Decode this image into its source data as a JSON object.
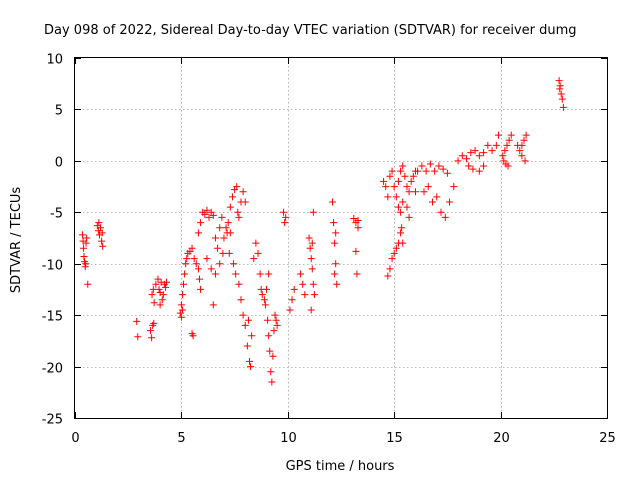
{
  "chart_data": {
    "type": "scatter",
    "title": "Day 098 of 2022, Sidereal Day-to-day VTEC variation (SDTVAR) for receiver dumg",
    "xlabel": "GPS time / hours",
    "ylabel": "SDTVAR / TECUs",
    "xlim": [
      0,
      25
    ],
    "ylim": [
      -25,
      10
    ],
    "xticks": [
      0,
      5,
      10,
      15,
      20,
      25
    ],
    "yticks": [
      -25,
      -20,
      -15,
      -10,
      -5,
      0,
      5,
      10
    ],
    "grid": true,
    "marker": "+",
    "series": [
      {
        "name": "SDTVAR",
        "color": "#ff0000",
        "points": [
          [
            0.35,
            -7.2
          ],
          [
            0.38,
            -7.8
          ],
          [
            0.4,
            -8.5
          ],
          [
            0.42,
            -9.3
          ],
          [
            0.45,
            -9.8
          ],
          [
            0.48,
            -10.3
          ],
          [
            0.5,
            -10.0
          ],
          [
            0.52,
            -8.0
          ],
          [
            0.55,
            -7.5
          ],
          [
            0.6,
            -12.0
          ],
          [
            1.05,
            -6.3
          ],
          [
            1.1,
            -6.8
          ],
          [
            1.15,
            -7.2
          ],
          [
            1.2,
            -6.5
          ],
          [
            1.25,
            -7.8
          ],
          [
            1.3,
            -8.3
          ],
          [
            1.12,
            -6.0
          ],
          [
            1.28,
            -7.0
          ],
          [
            2.9,
            -15.6
          ],
          [
            2.95,
            -17.1
          ],
          [
            3.55,
            -16.5
          ],
          [
            3.6,
            -17.2
          ],
          [
            3.65,
            -16.0
          ],
          [
            3.7,
            -15.8
          ],
          [
            3.62,
            -13.0
          ],
          [
            3.68,
            -12.5
          ],
          [
            3.72,
            -13.8
          ],
          [
            3.8,
            -12.0
          ],
          [
            3.9,
            -11.5
          ],
          [
            4.0,
            -12.8
          ],
          [
            4.1,
            -13.5
          ],
          [
            4.2,
            -12.0
          ],
          [
            4.3,
            -11.8
          ],
          [
            4.0,
            -14.0
          ],
          [
            4.15,
            -13.0
          ],
          [
            4.25,
            -12.3
          ],
          [
            3.95,
            -12.5
          ],
          [
            4.05,
            -11.8
          ],
          [
            4.95,
            -14.8
          ],
          [
            5.0,
            -14.0
          ],
          [
            5.05,
            -13.0
          ],
          [
            5.1,
            -12.0
          ],
          [
            5.15,
            -11.0
          ],
          [
            5.2,
            -10.0
          ],
          [
            5.25,
            -9.5
          ],
          [
            5.3,
            -9.0
          ],
          [
            5.4,
            -8.8
          ],
          [
            5.5,
            -8.5
          ],
          [
            5.6,
            -9.5
          ],
          [
            5.7,
            -10.0
          ],
          [
            5.8,
            -10.5
          ],
          [
            5.85,
            -11.5
          ],
          [
            5.9,
            -12.5
          ],
          [
            5.0,
            -15.2
          ],
          [
            5.05,
            -14.5
          ],
          [
            5.5,
            -16.8
          ],
          [
            5.55,
            -17.0
          ],
          [
            5.8,
            -7.0
          ],
          [
            5.9,
            -6.0
          ],
          [
            6.0,
            -5.0
          ],
          [
            6.1,
            -5.2
          ],
          [
            6.2,
            -4.8
          ],
          [
            6.3,
            -5.5
          ],
          [
            6.4,
            -5.0
          ],
          [
            6.5,
            -5.3
          ],
          [
            6.6,
            -7.5
          ],
          [
            6.7,
            -8.5
          ],
          [
            6.8,
            -6.5
          ],
          [
            6.9,
            -5.5
          ],
          [
            6.2,
            -9.5
          ],
          [
            6.4,
            -10.5
          ],
          [
            6.6,
            -11.0
          ],
          [
            6.8,
            -10.0
          ],
          [
            6.5,
            -14.0
          ],
          [
            7.0,
            -7.5
          ],
          [
            7.1,
            -6.5
          ],
          [
            7.2,
            -6.0
          ],
          [
            7.3,
            -4.5
          ],
          [
            7.4,
            -3.5
          ],
          [
            7.5,
            -2.8
          ],
          [
            7.6,
            -2.5
          ],
          [
            7.65,
            -5.0
          ],
          [
            7.7,
            -5.5
          ],
          [
            7.8,
            -4.0
          ],
          [
            7.9,
            -3.0
          ],
          [
            8.0,
            -4.0
          ],
          [
            7.25,
            -9.0
          ],
          [
            7.45,
            -10.0
          ],
          [
            7.55,
            -11.0
          ],
          [
            7.15,
            -7.0
          ],
          [
            6.95,
            -9.0
          ],
          [
            7.3,
            -7.0
          ],
          [
            7.7,
            -12.0
          ],
          [
            7.8,
            -13.5
          ],
          [
            7.9,
            -15.0
          ],
          [
            8.0,
            -16.0
          ],
          [
            8.1,
            -18.0
          ],
          [
            8.2,
            -19.5
          ],
          [
            8.3,
            -17.0
          ],
          [
            8.25,
            -20.0
          ],
          [
            8.15,
            -15.5
          ],
          [
            8.4,
            -9.5
          ],
          [
            8.5,
            -8.0
          ],
          [
            8.6,
            -9.0
          ],
          [
            8.7,
            -11.0
          ],
          [
            8.8,
            -13.0
          ],
          [
            8.9,
            -13.5
          ],
          [
            9.0,
            -12.5
          ],
          [
            9.1,
            -11.0
          ],
          [
            8.95,
            -14.0
          ],
          [
            8.75,
            -12.5
          ],
          [
            9.05,
            -15.5
          ],
          [
            9.1,
            -17.0
          ],
          [
            9.15,
            -18.5
          ],
          [
            9.2,
            -20.5
          ],
          [
            9.25,
            -21.5
          ],
          [
            9.3,
            -19.0
          ],
          [
            9.35,
            -16.5
          ],
          [
            9.4,
            -15.0
          ],
          [
            9.45,
            -15.5
          ],
          [
            9.5,
            -16.0
          ],
          [
            9.8,
            -5.0
          ],
          [
            9.85,
            -6.0
          ],
          [
            9.9,
            -5.5
          ],
          [
            10.1,
            -14.5
          ],
          [
            10.2,
            -13.5
          ],
          [
            10.3,
            -12.5
          ],
          [
            10.6,
            -11.0
          ],
          [
            10.7,
            -12.0
          ],
          [
            10.8,
            -13.0
          ],
          [
            11.0,
            -7.5
          ],
          [
            11.05,
            -8.5
          ],
          [
            11.1,
            -9.5
          ],
          [
            11.15,
            -10.5
          ],
          [
            11.2,
            -12.0
          ],
          [
            11.25,
            -13.0
          ],
          [
            11.1,
            -14.5
          ],
          [
            11.2,
            -5.0
          ],
          [
            11.15,
            -8.0
          ],
          [
            12.1,
            -4.0
          ],
          [
            12.15,
            -6.0
          ],
          [
            12.2,
            -8.0
          ],
          [
            12.25,
            -10.0
          ],
          [
            12.3,
            -12.0
          ],
          [
            12.2,
            -11.0
          ],
          [
            12.25,
            -7.0
          ],
          [
            13.1,
            -5.6
          ],
          [
            13.2,
            -6.0
          ],
          [
            13.3,
            -5.8
          ],
          [
            13.2,
            -8.8
          ],
          [
            13.25,
            -11.0
          ],
          [
            13.3,
            -6.5
          ],
          [
            14.7,
            -11.2
          ],
          [
            14.8,
            -10.5
          ],
          [
            14.9,
            -9.5
          ],
          [
            15.0,
            -9.0
          ],
          [
            15.1,
            -8.5
          ],
          [
            15.2,
            -8.0
          ],
          [
            15.3,
            -7.0
          ],
          [
            15.35,
            -6.5
          ],
          [
            15.4,
            -8.0
          ],
          [
            14.5,
            -2.0
          ],
          [
            14.6,
            -2.5
          ],
          [
            14.7,
            -3.5
          ],
          [
            14.8,
            -1.5
          ],
          [
            14.9,
            -1.0
          ],
          [
            15.0,
            -2.5
          ],
          [
            15.1,
            -3.5
          ],
          [
            15.2,
            -2.0
          ],
          [
            15.3,
            -1.0
          ],
          [
            15.4,
            -0.5
          ],
          [
            15.5,
            -1.5
          ],
          [
            15.6,
            -2.5
          ],
          [
            15.7,
            -3.0
          ],
          [
            15.8,
            -2.0
          ],
          [
            15.9,
            -1.5
          ],
          [
            16.0,
            -1.0
          ],
          [
            15.2,
            -4.5
          ],
          [
            15.3,
            -5.0
          ],
          [
            15.4,
            -4.0
          ],
          [
            15.6,
            -4.5
          ],
          [
            15.7,
            -5.5
          ],
          [
            16.0,
            -3.0
          ],
          [
            16.1,
            -1.0
          ],
          [
            16.3,
            -0.5
          ],
          [
            16.5,
            -1.0
          ],
          [
            16.7,
            -0.3
          ],
          [
            16.9,
            -1.0
          ],
          [
            17.1,
            -0.5
          ],
          [
            17.3,
            -0.8
          ],
          [
            17.5,
            -1.2
          ],
          [
            16.4,
            -3.0
          ],
          [
            16.6,
            -2.5
          ],
          [
            16.8,
            -4.0
          ],
          [
            17.0,
            -3.5
          ],
          [
            17.2,
            -5.0
          ],
          [
            17.4,
            -5.5
          ],
          [
            17.6,
            -4.0
          ],
          [
            17.8,
            -2.5
          ],
          [
            18.0,
            0.0
          ],
          [
            18.2,
            0.5
          ],
          [
            18.4,
            0.2
          ],
          [
            18.6,
            0.8
          ],
          [
            18.8,
            1.0
          ],
          [
            19.0,
            0.5
          ],
          [
            19.2,
            0.8
          ],
          [
            19.4,
            1.5
          ],
          [
            19.6,
            1.0
          ],
          [
            19.8,
            1.5
          ],
          [
            19.9,
            2.5
          ],
          [
            18.5,
            -0.5
          ],
          [
            18.7,
            -0.8
          ],
          [
            19.0,
            -1.0
          ],
          [
            19.2,
            -0.5
          ],
          [
            20.1,
            0.5
          ],
          [
            20.2,
            1.0
          ],
          [
            20.3,
            1.5
          ],
          [
            20.4,
            2.0
          ],
          [
            20.5,
            2.5
          ],
          [
            20.25,
            -0.3
          ],
          [
            20.35,
            -0.5
          ],
          [
            20.15,
            0.0
          ],
          [
            20.8,
            1.5
          ],
          [
            20.9,
            1.0
          ],
          [
            21.0,
            1.5
          ],
          [
            21.1,
            2.0
          ],
          [
            21.2,
            2.5
          ],
          [
            21.0,
            0.5
          ],
          [
            21.15,
            0.0
          ],
          [
            22.75,
            7.8
          ],
          [
            22.8,
            7.3
          ],
          [
            22.85,
            6.5
          ],
          [
            22.9,
            6.0
          ],
          [
            22.95,
            5.2
          ],
          [
            22.78,
            7.0
          ]
        ]
      }
    ]
  }
}
